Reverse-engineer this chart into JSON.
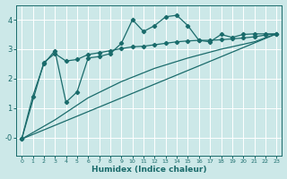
{
  "bg_color": "#cce8e8",
  "line_color": "#1a6b6b",
  "grid_color": "#ffffff",
  "xlabel": "Humidex (Indice chaleur)",
  "xlabel_fontsize": 6.5,
  "xlim": [
    -0.5,
    23.5
  ],
  "ylim": [
    -0.6,
    4.5
  ],
  "yticks": [
    0,
    1,
    2,
    3,
    4
  ],
  "ytick_labels": [
    "-0",
    "1",
    "2",
    "3",
    "4"
  ],
  "xticks": [
    0,
    1,
    2,
    3,
    4,
    5,
    6,
    7,
    8,
    9,
    10,
    11,
    12,
    13,
    14,
    15,
    16,
    17,
    18,
    19,
    20,
    21,
    22,
    23
  ],
  "line1_x": [
    0,
    1,
    2,
    3,
    4,
    5,
    6,
    7,
    8,
    9,
    10,
    11,
    12,
    13,
    14,
    15,
    16,
    17,
    18,
    19,
    20,
    21,
    22,
    23
  ],
  "line1_y": [
    -0.05,
    1.4,
    2.5,
    2.95,
    1.2,
    1.55,
    2.7,
    2.75,
    2.85,
    3.2,
    4.0,
    3.6,
    3.8,
    4.1,
    4.15,
    3.8,
    3.3,
    3.25,
    3.5,
    3.4,
    3.5,
    3.52,
    3.52,
    3.52
  ],
  "line2_x": [
    0,
    2,
    3,
    4,
    5,
    6,
    7,
    8,
    9,
    10,
    11,
    12,
    13,
    14,
    15,
    16,
    17,
    18,
    19,
    20,
    21,
    22,
    23
  ],
  "line2_y": [
    -0.05,
    2.55,
    2.85,
    2.6,
    2.65,
    2.82,
    2.88,
    2.95,
    3.02,
    3.08,
    3.1,
    3.15,
    3.2,
    3.25,
    3.28,
    3.3,
    3.3,
    3.32,
    3.35,
    3.38,
    3.42,
    3.48,
    3.52
  ],
  "line3_x": [
    0,
    23
  ],
  "line3_y": [
    -0.05,
    3.52
  ],
  "line4_x": [
    0,
    3,
    6,
    9,
    12,
    15,
    18,
    21,
    23
  ],
  "line4_y": [
    -0.05,
    0.6,
    1.35,
    1.9,
    2.35,
    2.7,
    3.0,
    3.25,
    3.52
  ],
  "marker": "D",
  "marker_size": 2.2,
  "linewidth": 0.9
}
